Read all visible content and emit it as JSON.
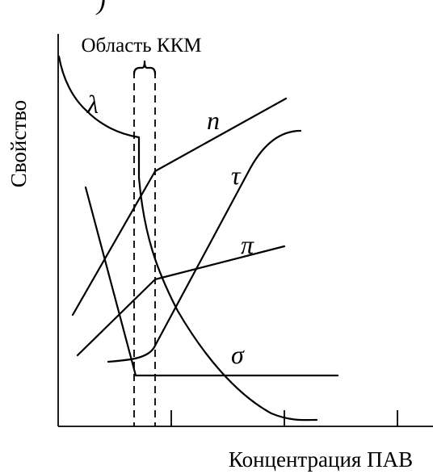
{
  "diagram": {
    "fragment_label": ")",
    "y_axis_label": "Свойство",
    "x_axis_label": "Концентрация ПАВ",
    "region_label": "Область ККМ",
    "curves": [
      {
        "id": "lambda",
        "label": "λ"
      },
      {
        "id": "n",
        "label": "n"
      },
      {
        "id": "tau",
        "label": "τ"
      },
      {
        "id": "pi",
        "label": "π"
      },
      {
        "id": "sigma",
        "label": "σ"
      }
    ],
    "x_ticks": 3
  }
}
